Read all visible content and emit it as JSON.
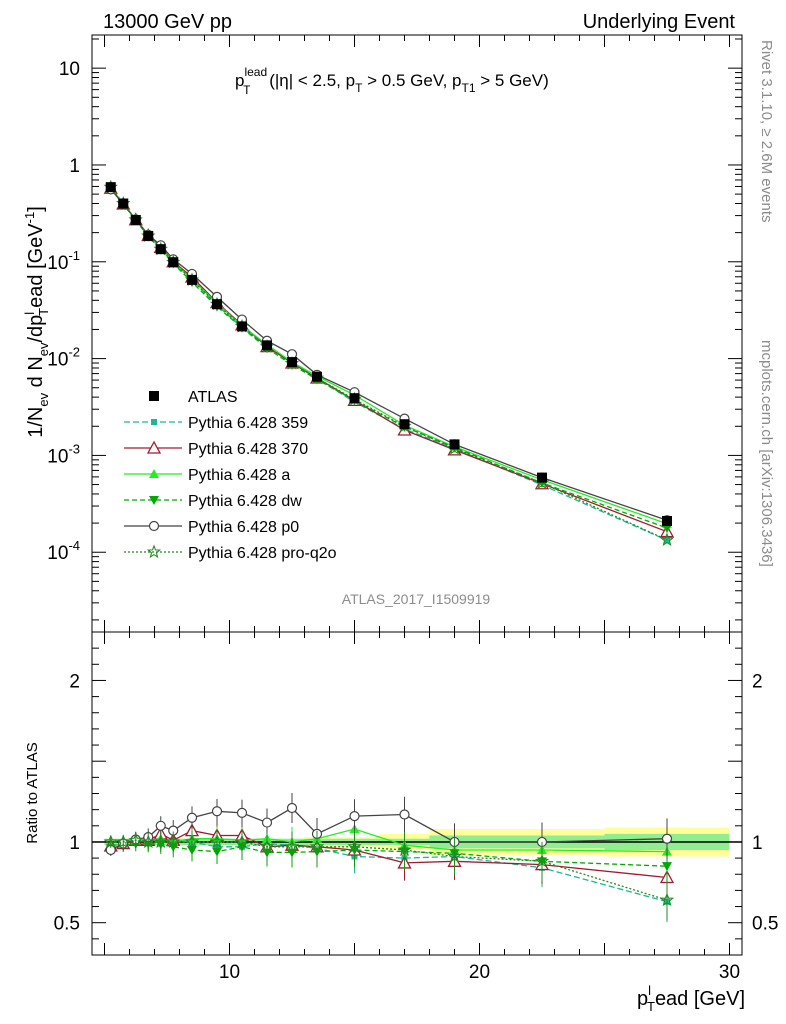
{
  "header": {
    "left": "13000 GeV pp",
    "right": "Underlying Event"
  },
  "side_labels": {
    "rivet": "Rivet 3.1.10, ≥ 2.6M events",
    "mcplots": "mcplots.cern.ch [arXiv:1306.3436]"
  },
  "watermark": "ATLAS_2017_I1509919",
  "chart_data": [
    {
      "type": "line",
      "panel": "main",
      "title": {
        "p": "p",
        "sup": "lead",
        "sub": "T",
        "rest1": " (|η| < 2.5, p",
        "sub2": "T",
        "rest2": " > 0.5 GeV, p",
        "sub3": "T1",
        "rest3": " > 5 GeV)"
      },
      "ylabel": {
        "a": "1/N",
        "a_sub": "ev",
        "b": " d N",
        "b_sub": "ev",
        "c": "/dp",
        "c_sup": "l",
        "c_sub": "T",
        "d": "ead [GeV",
        "d_sup": "-1",
        "e": "]"
      },
      "yscale": "log",
      "ylim": [
        1.5e-05,
        22
      ],
      "xlim": [
        4.5,
        30.5
      ],
      "yticks": [
        {
          "value": 10,
          "base": "10",
          "exp": ""
        },
        {
          "value": 1,
          "base": "1",
          "exp": ""
        },
        {
          "value": 0.1,
          "base": "10",
          "exp": "-1"
        },
        {
          "value": 0.01,
          "base": "10",
          "exp": "-2"
        },
        {
          "value": 0.001,
          "base": "10",
          "exp": "-3"
        },
        {
          "value": 0.0001,
          "base": "10",
          "exp": "-4"
        }
      ],
      "x": [
        5.25,
        5.75,
        6.25,
        6.75,
        7.25,
        7.75,
        8.5,
        9.5,
        10.5,
        11.5,
        12.5,
        13.5,
        15,
        17,
        19,
        22.5,
        27.5
      ],
      "reference": {
        "name": "ATLAS",
        "color": "#000000",
        "values": [
          0.59,
          0.4,
          0.27,
          0.185,
          0.135,
          0.099,
          0.065,
          0.0365,
          0.0215,
          0.0137,
          0.0092,
          0.0065,
          0.0039,
          0.0021,
          0.0013,
          0.00059,
          0.00021
        ]
      },
      "series": [
        {
          "name": "Pythia 6.428 359",
          "color": "#1ab899",
          "dash": "6,3",
          "marker": "square-small",
          "values": [
            0.572,
            0.395,
            0.272,
            0.185,
            0.137,
            0.1,
            0.065,
            0.0355,
            0.0208,
            0.0135,
            0.009,
            0.0062,
            0.00355,
            0.00188,
            0.00118,
            0.000495,
            0.000133
          ]
        },
        {
          "name": "Pythia 6.428 370",
          "color": "#a01c30",
          "dash": "",
          "marker": "triangle-open",
          "values": [
            0.575,
            0.395,
            0.272,
            0.187,
            0.141,
            0.1,
            0.0696,
            0.0379,
            0.0223,
            0.0133,
            0.009,
            0.0063,
            0.0037,
            0.00183,
            0.00114,
            0.00051,
            0.000163
          ]
        },
        {
          "name": "Pythia 6.428 a",
          "color": "#22ee22",
          "dash": "",
          "marker": "triangle-filled",
          "values": [
            0.572,
            0.398,
            0.272,
            0.187,
            0.137,
            0.099,
            0.0662,
            0.0372,
            0.0217,
            0.014,
            0.0092,
            0.0066,
            0.0042,
            0.00205,
            0.00123,
            0.00056,
            0.000197
          ]
        },
        {
          "name": "Pythia 6.428 dw",
          "color": "#00aa00",
          "dash": "5,3",
          "marker": "triangle-down",
          "values": [
            0.566,
            0.392,
            0.267,
            0.183,
            0.133,
            0.096,
            0.0617,
            0.0344,
            0.0208,
            0.0128,
            0.0086,
            0.0061,
            0.0037,
            0.00197,
            0.00121,
            0.00052,
            0.000178
          ]
        },
        {
          "name": "Pythia 6.428 p0",
          "color": "#444444",
          "dash": "",
          "marker": "circle-open",
          "values": [
            0.56,
            0.396,
            0.274,
            0.19,
            0.148,
            0.106,
            0.0749,
            0.0434,
            0.0253,
            0.0153,
            0.0111,
            0.0068,
            0.0045,
            0.0024,
            0.0013,
            0.00059,
            0.000214
          ]
        },
        {
          "name": "Pythia 6.428 pro-q2o",
          "color": "#228b22",
          "dash": "2,2",
          "marker": "star",
          "values": [
            0.59,
            0.4,
            0.272,
            0.185,
            0.135,
            0.099,
            0.065,
            0.0365,
            0.0215,
            0.0133,
            0.0089,
            0.0063,
            0.0038,
            0.002,
            0.00118,
            0.00052,
            0.000134
          ]
        }
      ]
    },
    {
      "type": "line",
      "panel": "ratio",
      "ylabel": "Ratio to ATLAS",
      "ylim": [
        0.3,
        2.3
      ],
      "yticks": [
        {
          "value": 0.5,
          "label": "0.5"
        },
        {
          "value": 1,
          "label": "1"
        },
        {
          "value": 2,
          "label": "2"
        }
      ],
      "xlim": [
        4.5,
        30.5
      ],
      "xticks": [
        {
          "value": 10,
          "label": "10"
        },
        {
          "value": 20,
          "label": "20"
        },
        {
          "value": 30,
          "label": "30"
        }
      ],
      "xlabel": {
        "a": "p",
        "sup": "l",
        "sub": "T",
        "b": "ead [GeV]"
      },
      "band_edges": [
        5,
        5.5,
        6,
        6.5,
        7,
        7.5,
        8,
        9,
        10,
        11,
        12,
        13,
        14,
        16,
        18,
        20,
        25,
        30
      ],
      "band_inner": [
        0.02,
        0.02,
        0.02,
        0.02,
        0.02,
        0.02,
        0.02,
        0.02,
        0.02,
        0.02,
        0.02,
        0.02,
        0.02,
        0.02,
        0.04,
        0.04,
        0.05
      ],
      "band_outer": [
        0.02,
        0.02,
        0.02,
        0.02,
        0.02,
        0.02,
        0.02,
        0.02,
        0.02,
        0.02,
        0.02,
        0.03,
        0.03,
        0.05,
        0.08,
        0.08,
        0.09
      ],
      "band_inner_color": "#90ee90",
      "band_outer_color": "#ffff99",
      "series_ratios": [
        [
          0.97,
          0.99,
          1.01,
          1.0,
          1.01,
          1.01,
          1.0,
          0.97,
          0.97,
          0.99,
          0.98,
          0.96,
          0.91,
          0.9,
          0.91,
          0.84,
          0.63
        ],
        [
          0.975,
          0.99,
          1.01,
          1.01,
          1.05,
          1.01,
          1.07,
          1.04,
          1.04,
          0.97,
          0.98,
          0.97,
          0.95,
          0.87,
          0.88,
          0.86,
          0.78
        ],
        [
          0.97,
          0.995,
          1.01,
          1.01,
          1.02,
          1.0,
          1.02,
          1.02,
          1.01,
          1.02,
          1.0,
          1.02,
          1.08,
          0.98,
          0.95,
          0.95,
          0.94
        ],
        [
          0.96,
          0.98,
          0.99,
          0.99,
          0.985,
          0.97,
          0.95,
          0.94,
          0.97,
          0.935,
          0.935,
          0.94,
          0.95,
          0.94,
          0.93,
          0.88,
          0.85
        ],
        [
          0.95,
          0.99,
          1.015,
          1.03,
          1.1,
          1.07,
          1.15,
          1.19,
          1.18,
          1.12,
          1.21,
          1.05,
          1.16,
          1.17,
          1.0,
          1.0,
          1.02
        ],
        [
          1.0,
          1.0,
          1.01,
          1.0,
          1.0,
          1.0,
          1.0,
          1.0,
          1.0,
          0.97,
          0.97,
          0.97,
          0.97,
          0.95,
          0.91,
          0.88,
          0.64
        ]
      ]
    }
  ]
}
